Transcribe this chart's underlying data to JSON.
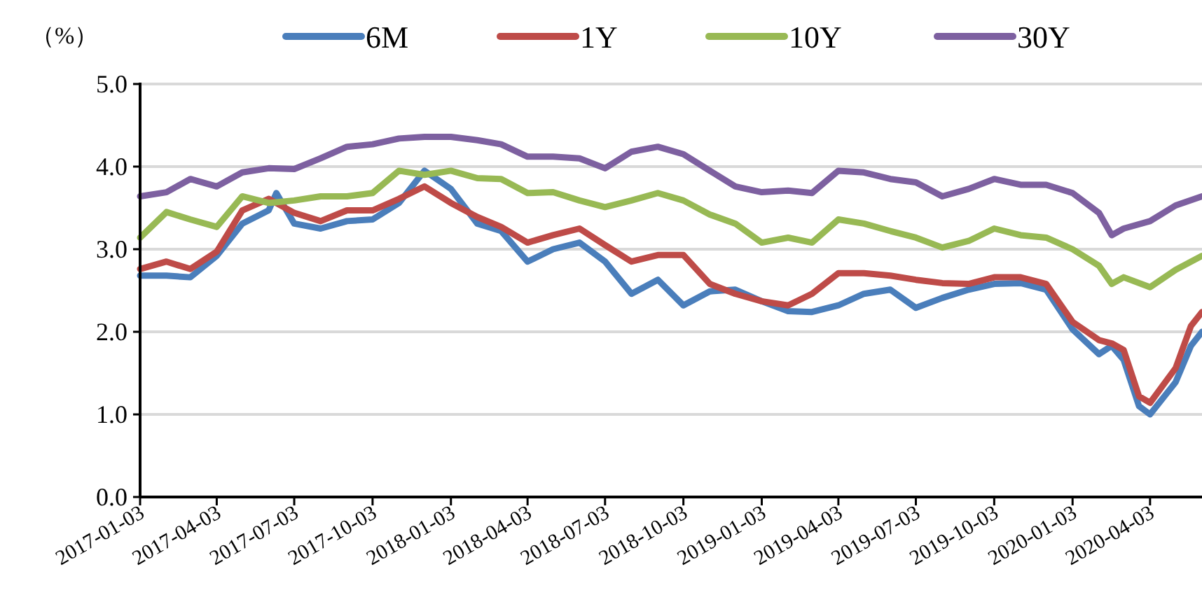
{
  "chart_data": {
    "type": "line",
    "ylabel": "（%）",
    "xlim": [
      "2017-01-03",
      "2020-06-03"
    ],
    "ylim": [
      0,
      5
    ],
    "xticks": [
      "2017-01-03",
      "2017-04-03",
      "2017-07-03",
      "2017-10-03",
      "2018-01-03",
      "2018-04-03",
      "2018-07-03",
      "2018-10-03",
      "2019-01-03",
      "2019-04-03",
      "2019-07-03",
      "2019-10-03",
      "2020-01-03",
      "2020-04-03"
    ],
    "yticks": [
      {
        "value": 0,
        "label": "0.0"
      },
      {
        "value": 1,
        "label": "1.0"
      },
      {
        "value": 2,
        "label": "2.0"
      },
      {
        "value": 3,
        "label": "3.0"
      },
      {
        "value": 4,
        "label": "4.0"
      },
      {
        "value": 5,
        "label": "5.0"
      }
    ],
    "grid": "y",
    "legend": "top",
    "marker": "none",
    "line_style": "solid",
    "series": [
      {
        "name": "6M",
        "color": "#4a7ebb",
        "x": [
          "2017-01-03",
          "2017-02-03",
          "2017-03-03",
          "2017-04-03",
          "2017-05-03",
          "2017-06-03",
          "2017-06-12",
          "2017-07-03",
          "2017-08-03",
          "2017-09-03",
          "2017-10-03",
          "2017-11-03",
          "2017-12-03",
          "2018-01-03",
          "2018-02-03",
          "2018-03-03",
          "2018-04-03",
          "2018-05-03",
          "2018-06-03",
          "2018-07-03",
          "2018-08-03",
          "2018-09-03",
          "2018-10-03",
          "2018-11-03",
          "2018-12-03",
          "2019-01-03",
          "2019-02-03",
          "2019-03-03",
          "2019-04-03",
          "2019-05-03",
          "2019-06-03",
          "2019-07-03",
          "2019-08-03",
          "2019-09-03",
          "2019-10-03",
          "2019-11-03",
          "2019-12-03",
          "2020-01-03",
          "2020-02-03",
          "2020-02-18",
          "2020-03-03",
          "2020-03-21",
          "2020-04-03",
          "2020-05-03",
          "2020-05-21",
          "2020-06-03"
        ],
        "values": [
          2.68,
          2.68,
          2.66,
          2.92,
          3.31,
          3.47,
          3.68,
          3.31,
          3.25,
          3.34,
          3.36,
          3.56,
          3.95,
          3.73,
          3.31,
          3.22,
          2.85,
          3.0,
          3.08,
          2.85,
          2.46,
          2.63,
          2.32,
          2.49,
          2.51,
          2.37,
          2.25,
          2.24,
          2.32,
          2.46,
          2.51,
          2.29,
          2.41,
          2.51,
          2.58,
          2.59,
          2.51,
          2.03,
          1.73,
          1.83,
          1.66,
          1.1,
          1.0,
          1.39,
          1.83,
          2.0
        ]
      },
      {
        "name": "1Y",
        "color": "#be4b48",
        "x": [
          "2017-01-03",
          "2017-02-03",
          "2017-03-03",
          "2017-04-03",
          "2017-05-03",
          "2017-06-03",
          "2017-07-03",
          "2017-08-03",
          "2017-09-03",
          "2017-10-03",
          "2017-11-03",
          "2017-12-03",
          "2018-01-03",
          "2018-02-03",
          "2018-03-03",
          "2018-04-03",
          "2018-05-03",
          "2018-06-03",
          "2018-07-03",
          "2018-08-03",
          "2018-09-03",
          "2018-10-03",
          "2018-11-03",
          "2018-12-03",
          "2019-01-03",
          "2019-02-03",
          "2019-03-03",
          "2019-04-03",
          "2019-05-03",
          "2019-06-03",
          "2019-07-03",
          "2019-08-03",
          "2019-09-03",
          "2019-10-03",
          "2019-11-03",
          "2019-12-03",
          "2020-01-03",
          "2020-02-03",
          "2020-02-18",
          "2020-03-03",
          "2020-03-21",
          "2020-04-03",
          "2020-05-03",
          "2020-05-21",
          "2020-06-03"
        ],
        "values": [
          2.76,
          2.85,
          2.76,
          2.97,
          3.47,
          3.61,
          3.44,
          3.34,
          3.47,
          3.47,
          3.61,
          3.76,
          3.56,
          3.39,
          3.27,
          3.08,
          3.17,
          3.25,
          3.05,
          2.85,
          2.93,
          2.93,
          2.58,
          2.46,
          2.37,
          2.32,
          2.46,
          2.71,
          2.71,
          2.68,
          2.63,
          2.59,
          2.58,
          2.66,
          2.66,
          2.58,
          2.12,
          1.9,
          1.86,
          1.78,
          1.22,
          1.14,
          1.56,
          2.07,
          2.24
        ]
      },
      {
        "name": "10Y",
        "color": "#98b954",
        "x": [
          "2017-01-03",
          "2017-02-03",
          "2017-03-03",
          "2017-04-03",
          "2017-05-03",
          "2017-06-03",
          "2017-07-03",
          "2017-08-03",
          "2017-09-03",
          "2017-10-03",
          "2017-11-03",
          "2017-12-03",
          "2018-01-03",
          "2018-02-03",
          "2018-03-03",
          "2018-04-03",
          "2018-05-03",
          "2018-06-03",
          "2018-07-03",
          "2018-08-03",
          "2018-09-03",
          "2018-10-03",
          "2018-11-03",
          "2018-12-03",
          "2019-01-03",
          "2019-02-03",
          "2019-03-03",
          "2019-04-03",
          "2019-05-03",
          "2019-06-03",
          "2019-07-03",
          "2019-08-03",
          "2019-09-03",
          "2019-10-03",
          "2019-11-03",
          "2019-12-03",
          "2020-01-03",
          "2020-02-03",
          "2020-02-18",
          "2020-03-03",
          "2020-04-03",
          "2020-05-03",
          "2020-06-03"
        ],
        "values": [
          3.14,
          3.45,
          3.36,
          3.27,
          3.64,
          3.56,
          3.59,
          3.64,
          3.64,
          3.68,
          3.95,
          3.9,
          3.95,
          3.86,
          3.85,
          3.68,
          3.69,
          3.59,
          3.51,
          3.59,
          3.68,
          3.59,
          3.42,
          3.31,
          3.08,
          3.14,
          3.08,
          3.36,
          3.31,
          3.22,
          3.14,
          3.02,
          3.1,
          3.25,
          3.17,
          3.14,
          3.0,
          2.8,
          2.58,
          2.66,
          2.54,
          2.75,
          2.92
        ]
      },
      {
        "name": "30Y",
        "color": "#7d60a0",
        "x": [
          "2017-01-03",
          "2017-02-03",
          "2017-03-03",
          "2017-04-03",
          "2017-05-03",
          "2017-06-03",
          "2017-07-03",
          "2017-08-03",
          "2017-09-03",
          "2017-10-03",
          "2017-11-03",
          "2017-12-03",
          "2018-01-03",
          "2018-02-03",
          "2018-03-03",
          "2018-04-03",
          "2018-05-03",
          "2018-06-03",
          "2018-07-03",
          "2018-08-03",
          "2018-09-03",
          "2018-10-03",
          "2018-11-03",
          "2018-12-03",
          "2019-01-03",
          "2019-02-03",
          "2019-03-03",
          "2019-04-03",
          "2019-05-03",
          "2019-06-03",
          "2019-07-03",
          "2019-08-03",
          "2019-09-03",
          "2019-10-03",
          "2019-11-03",
          "2019-12-03",
          "2020-01-03",
          "2020-02-03",
          "2020-02-18",
          "2020-03-03",
          "2020-04-03",
          "2020-05-03",
          "2020-06-03"
        ],
        "values": [
          3.64,
          3.69,
          3.85,
          3.76,
          3.93,
          3.98,
          3.97,
          4.1,
          4.24,
          4.27,
          4.34,
          4.36,
          4.36,
          4.32,
          4.27,
          4.12,
          4.12,
          4.1,
          3.98,
          4.18,
          4.24,
          4.15,
          3.95,
          3.76,
          3.69,
          3.71,
          3.68,
          3.95,
          3.93,
          3.85,
          3.81,
          3.64,
          3.73,
          3.85,
          3.78,
          3.78,
          3.68,
          3.44,
          3.17,
          3.25,
          3.34,
          3.53,
          3.64
        ]
      }
    ]
  }
}
